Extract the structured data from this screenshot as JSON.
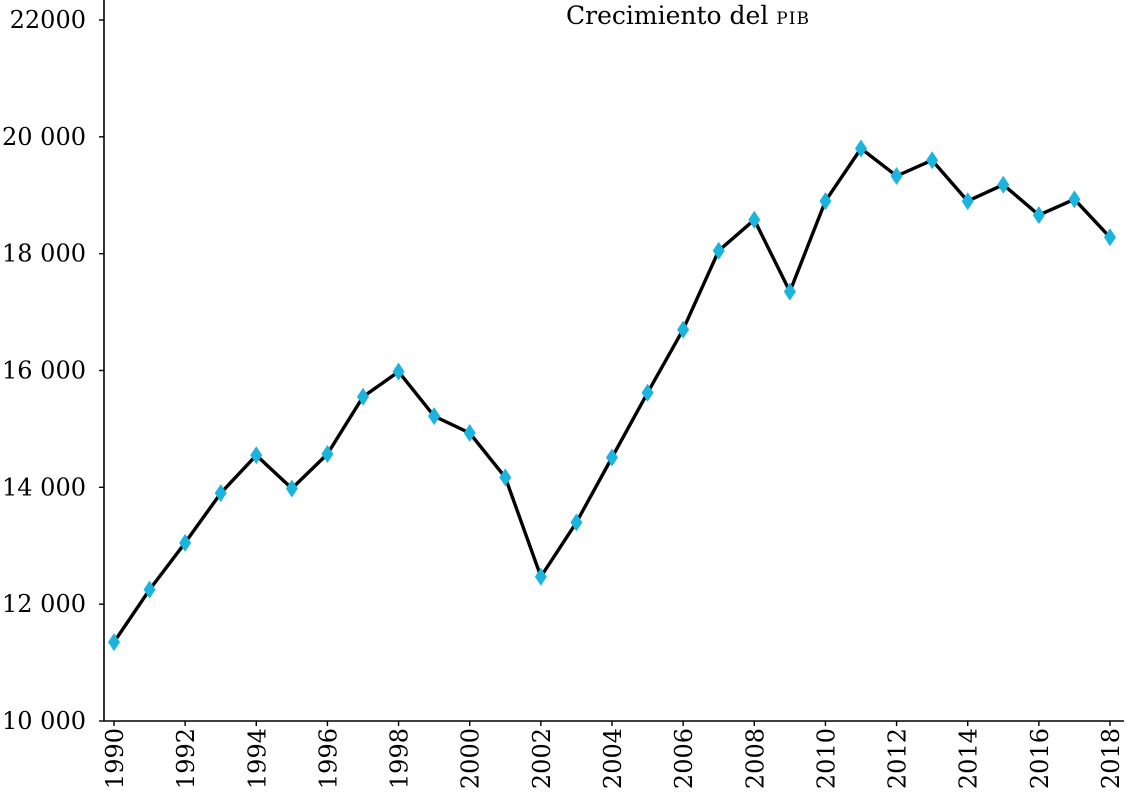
{
  "chart_data": {
    "type": "line",
    "title": "Crecimiento del PIB",
    "xlabel": "",
    "ylabel": "",
    "xlim": [
      1990,
      2018
    ],
    "ylim": [
      10000,
      22000
    ],
    "yticks": [
      "10 000",
      "12 000",
      "14 000",
      "16 000",
      "18 000",
      "20 000",
      "22000"
    ],
    "xticks": [
      "1990",
      "1992",
      "1994",
      "1996",
      "1998",
      "2000",
      "2002",
      "2004",
      "2006",
      "2008",
      "2010",
      "2012",
      "2014",
      "2016",
      "2018"
    ],
    "grid": false,
    "legend": "none",
    "colors": {
      "line": "#000000",
      "marker": "#1ab4de"
    },
    "series": [
      {
        "x": [
          1990,
          1991,
          1992,
          1993,
          1994,
          1995,
          1996,
          1997,
          1998,
          1999,
          2000,
          2001,
          2002,
          2003,
          2004,
          2005,
          2006,
          2007,
          2008,
          2009,
          2010,
          2011,
          2012,
          2013,
          2014,
          2015,
          2016,
          2017,
          2018
        ],
        "values": [
          11350,
          12250,
          13050,
          13900,
          14550,
          13980,
          14570,
          15550,
          15980,
          15220,
          14930,
          14170,
          12470,
          13400,
          14510,
          15620,
          16700,
          18050,
          18580,
          17350,
          18900,
          19800,
          19330,
          19600,
          18900,
          19180,
          18660,
          18930,
          18280
        ]
      }
    ]
  }
}
